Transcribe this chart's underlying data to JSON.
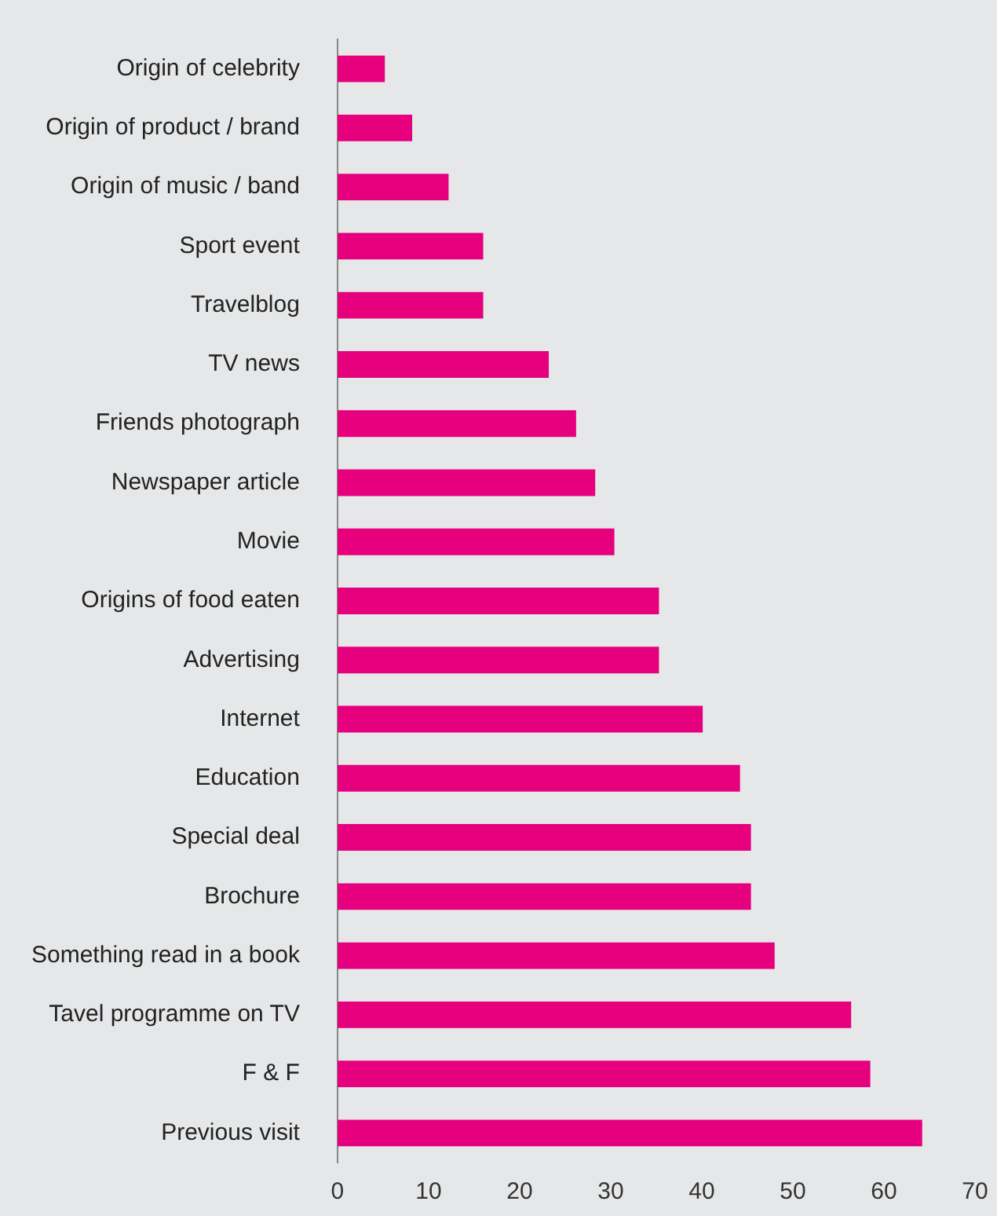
{
  "chart_data": {
    "type": "bar",
    "orientation": "horizontal",
    "color": "#e6007e",
    "categories": [
      "Origin of celebrity",
      "Origin of product / brand",
      "Origin of music / band",
      "Sport event",
      "Travelblog",
      "TV news",
      "Friends photograph",
      "Newspaper article",
      "Movie",
      "Origins of food eaten",
      "Advertising",
      "Internet",
      "Education",
      "Special deal",
      "Brochure",
      "Something read in a book",
      "Tavel programme on TV",
      "F & F",
      "Previous visit"
    ],
    "values": [
      5.2,
      8.2,
      12.2,
      16,
      16,
      23.2,
      26.2,
      28.3,
      30.4,
      35.3,
      35.3,
      40.1,
      44.2,
      45.4,
      45.4,
      48,
      56.4,
      58.5,
      64.2
    ],
    "xlim": [
      0,
      70
    ],
    "xticks": [
      0,
      10,
      20,
      30,
      40,
      50,
      60,
      70
    ],
    "grid": false,
    "legend": false
  }
}
